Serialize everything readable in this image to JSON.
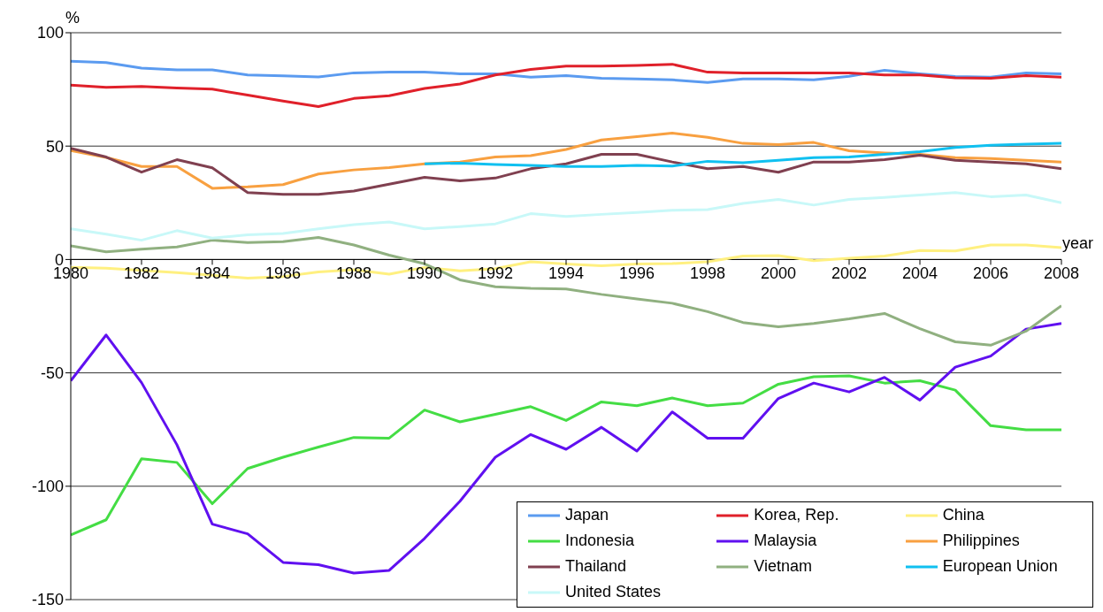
{
  "chart_data": {
    "type": "line",
    "xlabel": "year",
    "ylabel": "%",
    "x": [
      1980,
      1981,
      1982,
      1983,
      1984,
      1985,
      1986,
      1987,
      1988,
      1989,
      1990,
      1991,
      1992,
      1993,
      1994,
      1995,
      1996,
      1997,
      1998,
      1999,
      2000,
      2001,
      2002,
      2003,
      2004,
      2005,
      2006,
      2007,
      2008
    ],
    "xlim": [
      1980,
      2008
    ],
    "xticks": [
      1980,
      1982,
      1984,
      1986,
      1988,
      1990,
      1992,
      1994,
      1996,
      1998,
      2000,
      2002,
      2004,
      2006,
      2008
    ],
    "ylim": [
      -150,
      100
    ],
    "yticks": [
      -150,
      -100,
      -50,
      0,
      50,
      100
    ],
    "grid": "y",
    "legend": "bottom right",
    "marker": "none",
    "line_style": "solid",
    "series": [
      {
        "name": "Japan",
        "color": "#5b9bf0",
        "values": [
          87.4,
          86.8,
          84.4,
          83.6,
          83.6,
          81.4,
          81,
          80.5,
          82.3,
          82.6,
          82.6,
          81.9,
          81.9,
          80.4,
          81.1,
          79.9,
          79.6,
          79.2,
          78.1,
          79.6,
          79.6,
          79.2,
          80.8,
          83.4,
          81.9,
          80.7,
          80.4,
          82.3,
          81.9
        ]
      },
      {
        "name": "Korea, Rep.",
        "color": "#e0202a",
        "values": [
          76.9,
          75.9,
          76.3,
          75.6,
          75.1,
          72.5,
          69.9,
          67.4,
          71,
          72.2,
          75.4,
          77.4,
          81.4,
          83.8,
          85.3,
          85.3,
          85.6,
          86.1,
          82.6,
          82.3,
          82.3,
          82.3,
          82.3,
          81.4,
          81.4,
          80.1,
          79.9,
          81.1,
          80.4
        ]
      },
      {
        "name": "China",
        "color": "#fff080",
        "values": [
          -3.5,
          -3.8,
          -4.8,
          -5.8,
          -7,
          -8.2,
          -7.5,
          -5.5,
          -4.5,
          -6.5,
          -3.5,
          -5,
          -4,
          -1,
          -2,
          -2.8,
          -2,
          -1.8,
          -1,
          1.5,
          1.7,
          -0.5,
          0.5,
          1.5,
          4,
          3.8,
          6.4,
          6.4,
          5.2
        ]
      },
      {
        "name": "Indonesia",
        "color": "#44dd44",
        "values": [
          -121.5,
          -114.8,
          -87.9,
          -89.5,
          -107.7,
          -92.2,
          -87.2,
          -82.7,
          -78.5,
          -78.8,
          -66.4,
          -71.6,
          -68.3,
          -64.9,
          -71,
          -62.8,
          -64.5,
          -61.1,
          -64.5,
          -63.3,
          -55,
          -51.7,
          -51.3,
          -54.5,
          -53.5,
          -57.6,
          -73.3,
          -75.1,
          -75.1
        ]
      },
      {
        "name": "Malaysia",
        "color": "#6010f0",
        "values": [
          -53.5,
          -33.3,
          -54.3,
          -81.7,
          -116.7,
          -121,
          -133.6,
          -134.6,
          -138.3,
          -137.1,
          -123,
          -106.6,
          -87.2,
          -77.2,
          -83.7,
          -74,
          -84.5,
          -67.2,
          -78.8,
          -78.8,
          -61.3,
          -54.5,
          -58.4,
          -52,
          -62,
          -47.5,
          -42.6,
          -30.7,
          -28.2
        ]
      },
      {
        "name": "Philippines",
        "color": "#f8a040",
        "values": [
          48,
          45,
          41,
          41,
          31.4,
          32,
          33,
          37.7,
          39.5,
          40.5,
          42.2,
          43,
          45.2,
          45.8,
          48.5,
          52.7,
          54.2,
          55.7,
          53.9,
          51.2,
          50.7,
          51.6,
          47.9,
          47,
          46.4,
          44.9,
          44.5,
          43.7,
          43
        ]
      },
      {
        "name": "Thailand",
        "color": "#804050",
        "values": [
          49,
          45.2,
          38.5,
          44,
          40.4,
          29.5,
          28.7,
          28.7,
          30.2,
          33.2,
          36.2,
          34.7,
          35.9,
          40,
          42.2,
          46.4,
          46.4,
          43,
          40,
          41,
          38.5,
          43,
          43,
          44,
          46,
          43.7,
          43,
          42.2,
          40
        ]
      },
      {
        "name": "Vietnam",
        "color": "#90b080",
        "values": [
          6,
          3.4,
          4.5,
          5.5,
          8.5,
          7.5,
          7.9,
          9.7,
          6.4,
          1.9,
          -1.9,
          -9,
          -12,
          -12.7,
          -13,
          -15.4,
          -17.4,
          -19.3,
          -23,
          -27.8,
          -29.7,
          -28.2,
          -26.2,
          -23.8,
          -30.5,
          -36.3,
          -37.8,
          -31.6,
          -20.4
        ]
      },
      {
        "name": "European Union",
        "color": "#10c0f0",
        "values": [
          null,
          null,
          null,
          null,
          null,
          null,
          null,
          null,
          null,
          null,
          42.2,
          42.5,
          41.9,
          41.5,
          41,
          41,
          41.5,
          41.2,
          43.3,
          42.7,
          43.7,
          44.9,
          45.2,
          46.4,
          47.5,
          49.4,
          50.4,
          50.9,
          51.2
        ]
      },
      {
        "name": "United States",
        "color": "#c8f8f8",
        "values": [
          13.5,
          11.2,
          8.5,
          12.7,
          9.4,
          10.9,
          11.5,
          13.5,
          15.4,
          16.5,
          13.5,
          14.5,
          15.7,
          20.2,
          19,
          19.9,
          20.7,
          21.7,
          22,
          24.7,
          26.5,
          24,
          26.5,
          27.4,
          28.4,
          29.5,
          27.7,
          28.4,
          25
        ]
      }
    ]
  }
}
